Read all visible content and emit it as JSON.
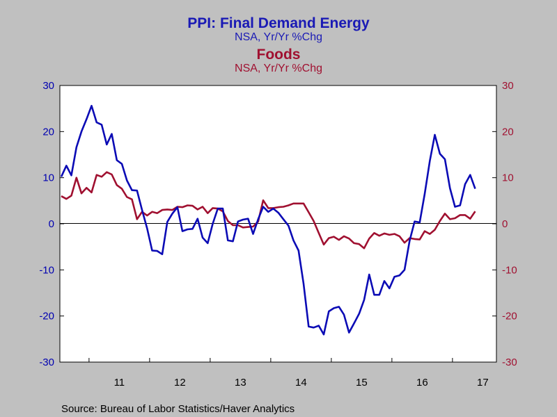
{
  "chart_data": {
    "type": "line",
    "title": "PPI: Final Demand Energy",
    "subtitle": "NSA, Yr/Yr %Chg",
    "title2": "Foods",
    "subtitle2": "NSA, Yr/Yr %Chg",
    "source": "Source:  Bureau of Labor Statistics/Haver Analytics",
    "x_tick_labels": [
      "11",
      "12",
      "13",
      "14",
      "15",
      "16",
      "17"
    ],
    "y_left": {
      "range": [
        -30,
        30
      ],
      "ticks": [
        "30",
        "20",
        "10",
        "0",
        "-10",
        "-20",
        "-30"
      ],
      "color": "#0000b0"
    },
    "y_right": {
      "range": [
        -30,
        30
      ],
      "ticks": [
        "30",
        "20",
        "10",
        "0",
        "-10",
        "-20",
        "-30"
      ],
      "color": "#a01030"
    },
    "x_start": "2010-07",
    "series": [
      {
        "name": "Final Demand Energy",
        "axis": "left",
        "color": "#0b0bb5",
        "values": [
          10.2,
          12.6,
          10.5,
          16.6,
          20.0,
          22.7,
          25.6,
          22.0,
          21.5,
          17.2,
          19.5,
          13.8,
          13.0,
          9.4,
          7.3,
          7.2,
          3.0,
          -1.0,
          -5.8,
          -5.9,
          -6.6,
          0.4,
          2.2,
          3.6,
          -1.6,
          -1.2,
          -1.1,
          1.1,
          -3.0,
          -4.2,
          0.0,
          3.3,
          3.3,
          -3.6,
          -3.8,
          0.5,
          0.9,
          1.1,
          -2.2,
          1.0,
          3.7,
          2.6,
          3.3,
          2.4,
          1.0,
          -0.4,
          -3.6,
          -5.8,
          -13.0,
          -22.3,
          -22.5,
          -22.1,
          -24.0,
          -19.0,
          -18.3,
          -18.0,
          -19.7,
          -23.6,
          -21.6,
          -19.5,
          -16.5,
          -11.0,
          -15.4,
          -15.4,
          -12.4,
          -14.0,
          -11.5,
          -11.2,
          -10.0,
          -3.7,
          0.5,
          0.3,
          6.5,
          13.6,
          19.3,
          15.2,
          14.0,
          7.7,
          3.7,
          4.0,
          8.6,
          10.6,
          7.6
        ]
      },
      {
        "name": "Foods",
        "axis": "right",
        "color": "#a01030",
        "values": [
          6.0,
          5.4,
          6.1,
          10.0,
          6.6,
          7.8,
          6.8,
          10.6,
          10.2,
          11.2,
          10.7,
          8.4,
          7.6,
          5.8,
          5.3,
          1.0,
          2.6,
          1.8,
          2.6,
          2.3,
          3.0,
          3.1,
          3.0,
          3.7,
          3.6,
          4.0,
          3.9,
          3.1,
          3.7,
          2.3,
          3.4,
          3.3,
          2.7,
          0.6,
          -0.3,
          -0.3,
          -0.8,
          -0.7,
          -0.6,
          0.5,
          5.1,
          3.4,
          3.4,
          3.6,
          3.7,
          4.0,
          4.4,
          4.4,
          4.4,
          2.5,
          0.6,
          -2.0,
          -4.5,
          -3.1,
          -2.8,
          -3.5,
          -2.7,
          -3.2,
          -4.2,
          -4.4,
          -5.3,
          -3.2,
          -2.0,
          -2.6,
          -2.1,
          -2.4,
          -2.2,
          -2.7,
          -4.1,
          -3.1,
          -3.3,
          -3.4,
          -1.6,
          -2.2,
          -1.3,
          0.6,
          2.2,
          1.0,
          1.2,
          1.9,
          1.9,
          1.1,
          2.7
        ]
      }
    ]
  }
}
